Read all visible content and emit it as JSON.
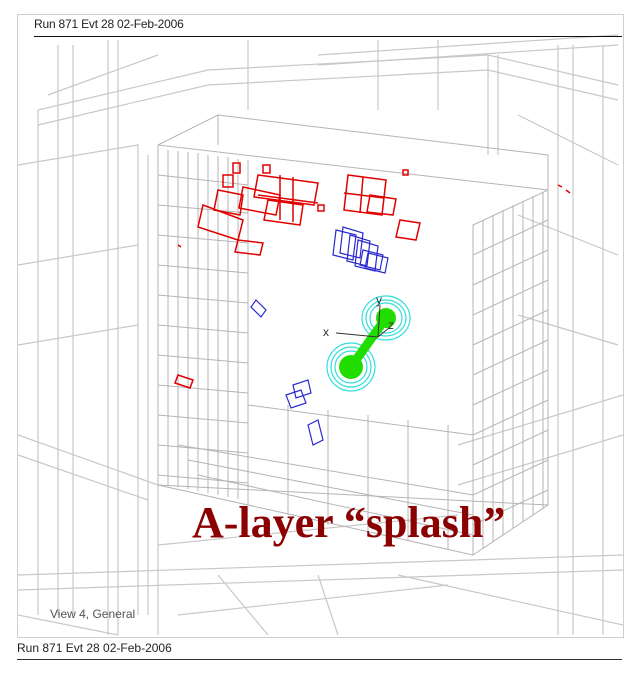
{
  "header": {
    "run_label": "Run 871 Evt 28 02-Feb-2006"
  },
  "footer": {
    "run_label": "Run 871 Evt 28 02-Feb-2006"
  },
  "view": {
    "label": "View 4, General"
  },
  "annotation": {
    "title": "A-layer “splash”"
  },
  "axes": {
    "x": "x",
    "y": "y",
    "z": "z"
  },
  "colors": {
    "geometry": "#c8c8c8",
    "hits_red": "#e00000",
    "hits_blue": "#2a2ad0",
    "beam_green": "#22dd00",
    "beam_cyan": "#33dddd",
    "annotation": "#8b0000"
  }
}
